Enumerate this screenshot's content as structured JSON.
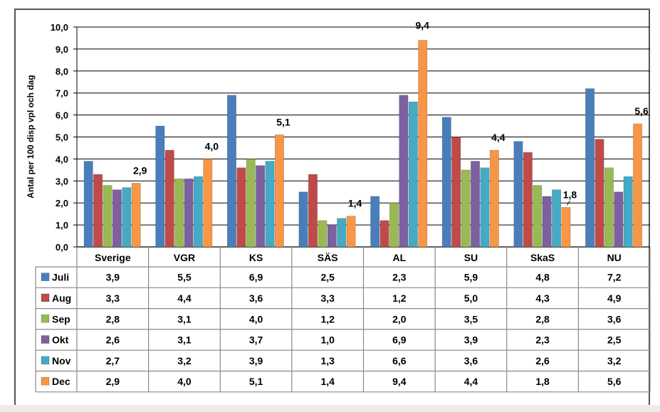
{
  "chart_data": {
    "type": "bar",
    "ylabel": "Antal per 100 disp vpl och dag",
    "xlabel": "",
    "ylim": [
      0,
      10
    ],
    "yticks": [
      "0,0",
      "1,0",
      "2,0",
      "3,0",
      "4,0",
      "5,0",
      "6,0",
      "7,0",
      "8,0",
      "9,0",
      "10,0"
    ],
    "grid": "horizontal",
    "legend": "table",
    "categories": [
      "Sverige",
      "VGR",
      "KS",
      "SÄS",
      "AL",
      "SU",
      "SkaS",
      "NU"
    ],
    "series": [
      {
        "name": "Juli",
        "color": "#4a7ebb",
        "values": [
          3.9,
          5.5,
          6.9,
          2.5,
          2.3,
          5.9,
          4.8,
          7.2
        ],
        "labels": [
          "3,9",
          "5,5",
          "6,9",
          "2,5",
          "2,3",
          "5,9",
          "4,8",
          "7,2"
        ]
      },
      {
        "name": "Aug",
        "color": "#be4b48",
        "values": [
          3.3,
          4.4,
          3.6,
          3.3,
          1.2,
          5.0,
          4.3,
          4.9
        ],
        "labels": [
          "3,3",
          "4,4",
          "3,6",
          "3,3",
          "1,2",
          "5,0",
          "4,3",
          "4,9"
        ]
      },
      {
        "name": "Sep",
        "color": "#98b954",
        "values": [
          2.8,
          3.1,
          4.0,
          1.2,
          2.0,
          3.5,
          2.8,
          3.6
        ],
        "labels": [
          "2,8",
          "3,1",
          "4,0",
          "1,2",
          "2,0",
          "3,5",
          "2,8",
          "3,6"
        ]
      },
      {
        "name": "Okt",
        "color": "#7d60a0",
        "values": [
          2.6,
          3.1,
          3.7,
          1.0,
          6.9,
          3.9,
          2.3,
          2.5
        ],
        "labels": [
          "2,6",
          "3,1",
          "3,7",
          "1,0",
          "6,9",
          "3,9",
          "2,3",
          "2,5"
        ]
      },
      {
        "name": "Nov",
        "color": "#46aac4",
        "values": [
          2.7,
          3.2,
          3.9,
          1.3,
          6.6,
          3.6,
          2.6,
          3.2
        ],
        "labels": [
          "2,7",
          "3,2",
          "3,9",
          "1,3",
          "6,6",
          "3,6",
          "2,6",
          "3,2"
        ]
      },
      {
        "name": "Dec",
        "color": "#f79646",
        "values": [
          2.9,
          4.0,
          5.1,
          1.4,
          9.4,
          4.4,
          1.8,
          5.6
        ],
        "labels": [
          "2,9",
          "4,0",
          "5,1",
          "1,4",
          "9,4",
          "4,4",
          "1,8",
          "5,6"
        ]
      }
    ],
    "data_labels_series": "Dec"
  }
}
